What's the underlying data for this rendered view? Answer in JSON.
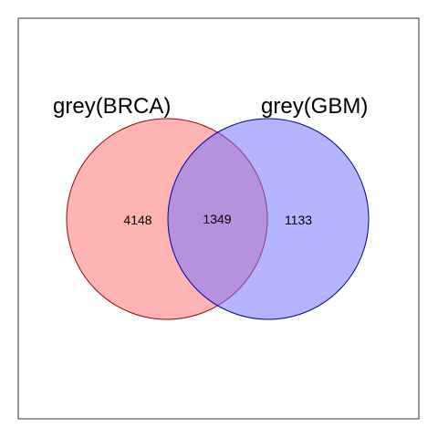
{
  "chart_data": {
    "type": "venn",
    "sets": [
      {
        "name": "grey(BRCA)",
        "fill_color": "#ff7777",
        "stroke_color": "#a00000"
      },
      {
        "name": "grey(GBM)",
        "fill_color": "#7777ff",
        "stroke_color": "#0000a0"
      }
    ],
    "regions": {
      "only_first": "4148",
      "intersection": "1349",
      "only_second": "1133"
    },
    "intersection_color": "#a070c8",
    "fill_opacity": 0.55
  }
}
